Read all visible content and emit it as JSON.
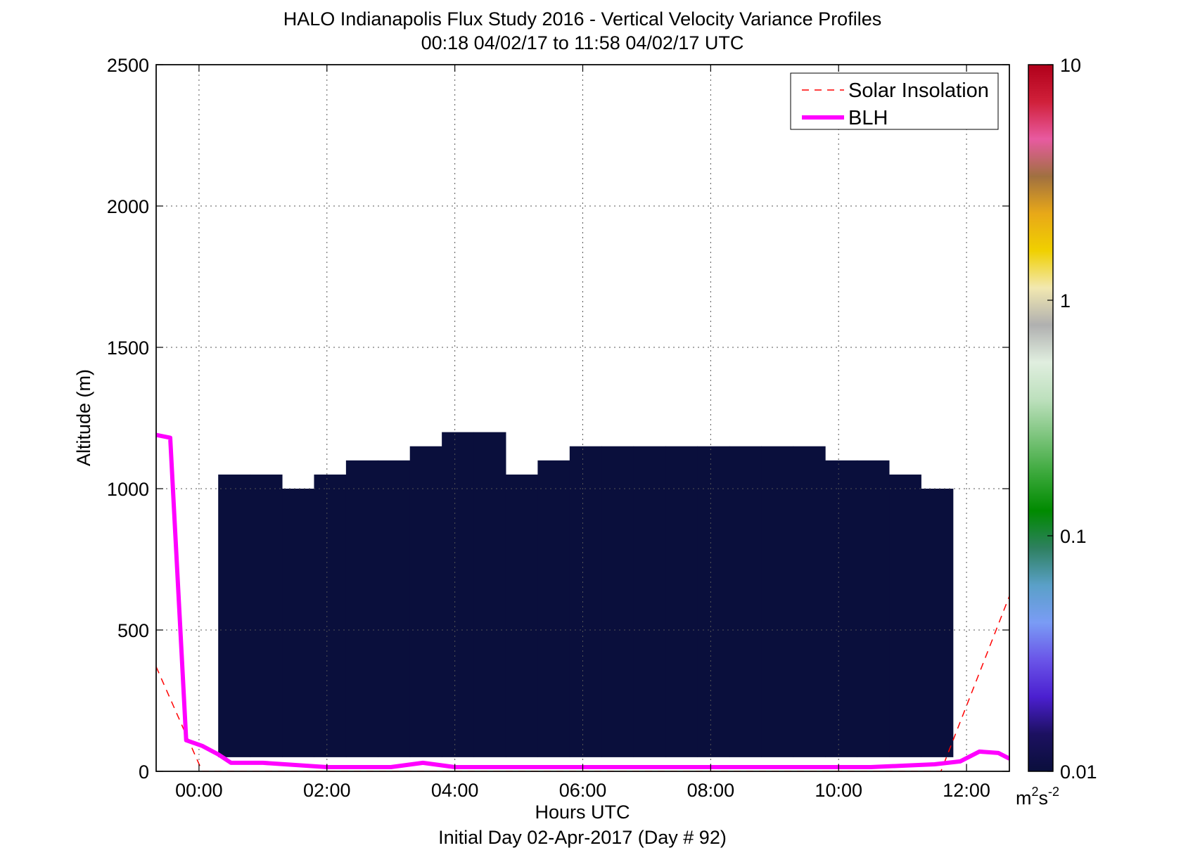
{
  "chart_data": {
    "type": "heatmap",
    "title": "HALO Indianapolis Flux Study 2016 - Vertical Velocity Variance Profiles",
    "subtitle": "00:18 04/02/17 to 11:58 04/02/17  UTC",
    "xlabel": "Hours UTC",
    "xlabel2": "Initial Day 02-Apr-2017 (Day # 92)",
    "ylabel": "Altitude (m)",
    "xlim": [
      -0.67,
      12.67
    ],
    "ylim": [
      0,
      2500
    ],
    "x_ticks": [
      0,
      2,
      4,
      6,
      8,
      10,
      12
    ],
    "x_tick_labels": [
      "00:00",
      "02:00",
      "04:00",
      "06:00",
      "08:00",
      "10:00",
      "12:00"
    ],
    "y_ticks": [
      0,
      500,
      1000,
      1500,
      2000,
      2500
    ],
    "y_tick_labels": [
      "0",
      "500",
      "1000",
      "1500",
      "2000",
      "2500"
    ],
    "grid": true,
    "legend_position": "top-right",
    "colorbar": {
      "scale": "log",
      "range": [
        0.01,
        10
      ],
      "ticks": [
        0.01,
        0.1,
        1,
        10
      ],
      "tick_labels": [
        "0.01",
        "0.1",
        "1",
        "10"
      ],
      "units_base": "m",
      "units_sup1": "2",
      "units_mid": "s",
      "units_sup2": "-2",
      "colors": [
        "#0a0f3c",
        "#1c1060",
        "#4b1fd0",
        "#6a55e8",
        "#7a9cf5",
        "#5aa0c8",
        "#2e8060",
        "#008a00",
        "#3aa83a",
        "#7cc47c",
        "#bde0bd",
        "#e0eedf",
        "#b0b0b0",
        "#f2e8b0",
        "#f0d000",
        "#e8a818",
        "#a07040",
        "#e85aa0",
        "#d0203a",
        "#b0001a"
      ]
    },
    "heatmap_summary": {
      "time_start": 0.3,
      "time_end": 11.97,
      "bin_hours": 0.333,
      "bin_m": 50,
      "dense_layer_top_m": [
        1050,
        1050,
        1000,
        1050,
        1100,
        1100,
        1150,
        1200,
        1200,
        1050,
        1100,
        1150,
        1150,
        1150,
        1150,
        1150,
        1150,
        1150,
        1150,
        1100,
        1100,
        1050,
        1000
      ],
      "dense_layer_value": 0.01
    },
    "series": [
      {
        "name": "Solar Insolation",
        "color": "#ff0000",
        "style": "dashed",
        "x": [
          -0.67,
          0.05,
          11.6,
          12.67
        ],
        "y": [
          370,
          0,
          0,
          620
        ]
      },
      {
        "name": "BLH",
        "color": "#ff00ff",
        "style": "solid",
        "x": [
          -0.67,
          -0.45,
          -0.2,
          0.05,
          0.3,
          0.5,
          1.0,
          2.0,
          3.0,
          3.5,
          4.0,
          5.0,
          6.0,
          7.0,
          8.0,
          9.0,
          10.0,
          10.5,
          11.0,
          11.5,
          11.9,
          12.2,
          12.5,
          12.67
        ],
        "y": [
          1190,
          1180,
          110,
          90,
          60,
          30,
          30,
          15,
          15,
          30,
          15,
          15,
          15,
          15,
          15,
          15,
          15,
          15,
          20,
          25,
          35,
          70,
          65,
          45
        ]
      }
    ]
  }
}
